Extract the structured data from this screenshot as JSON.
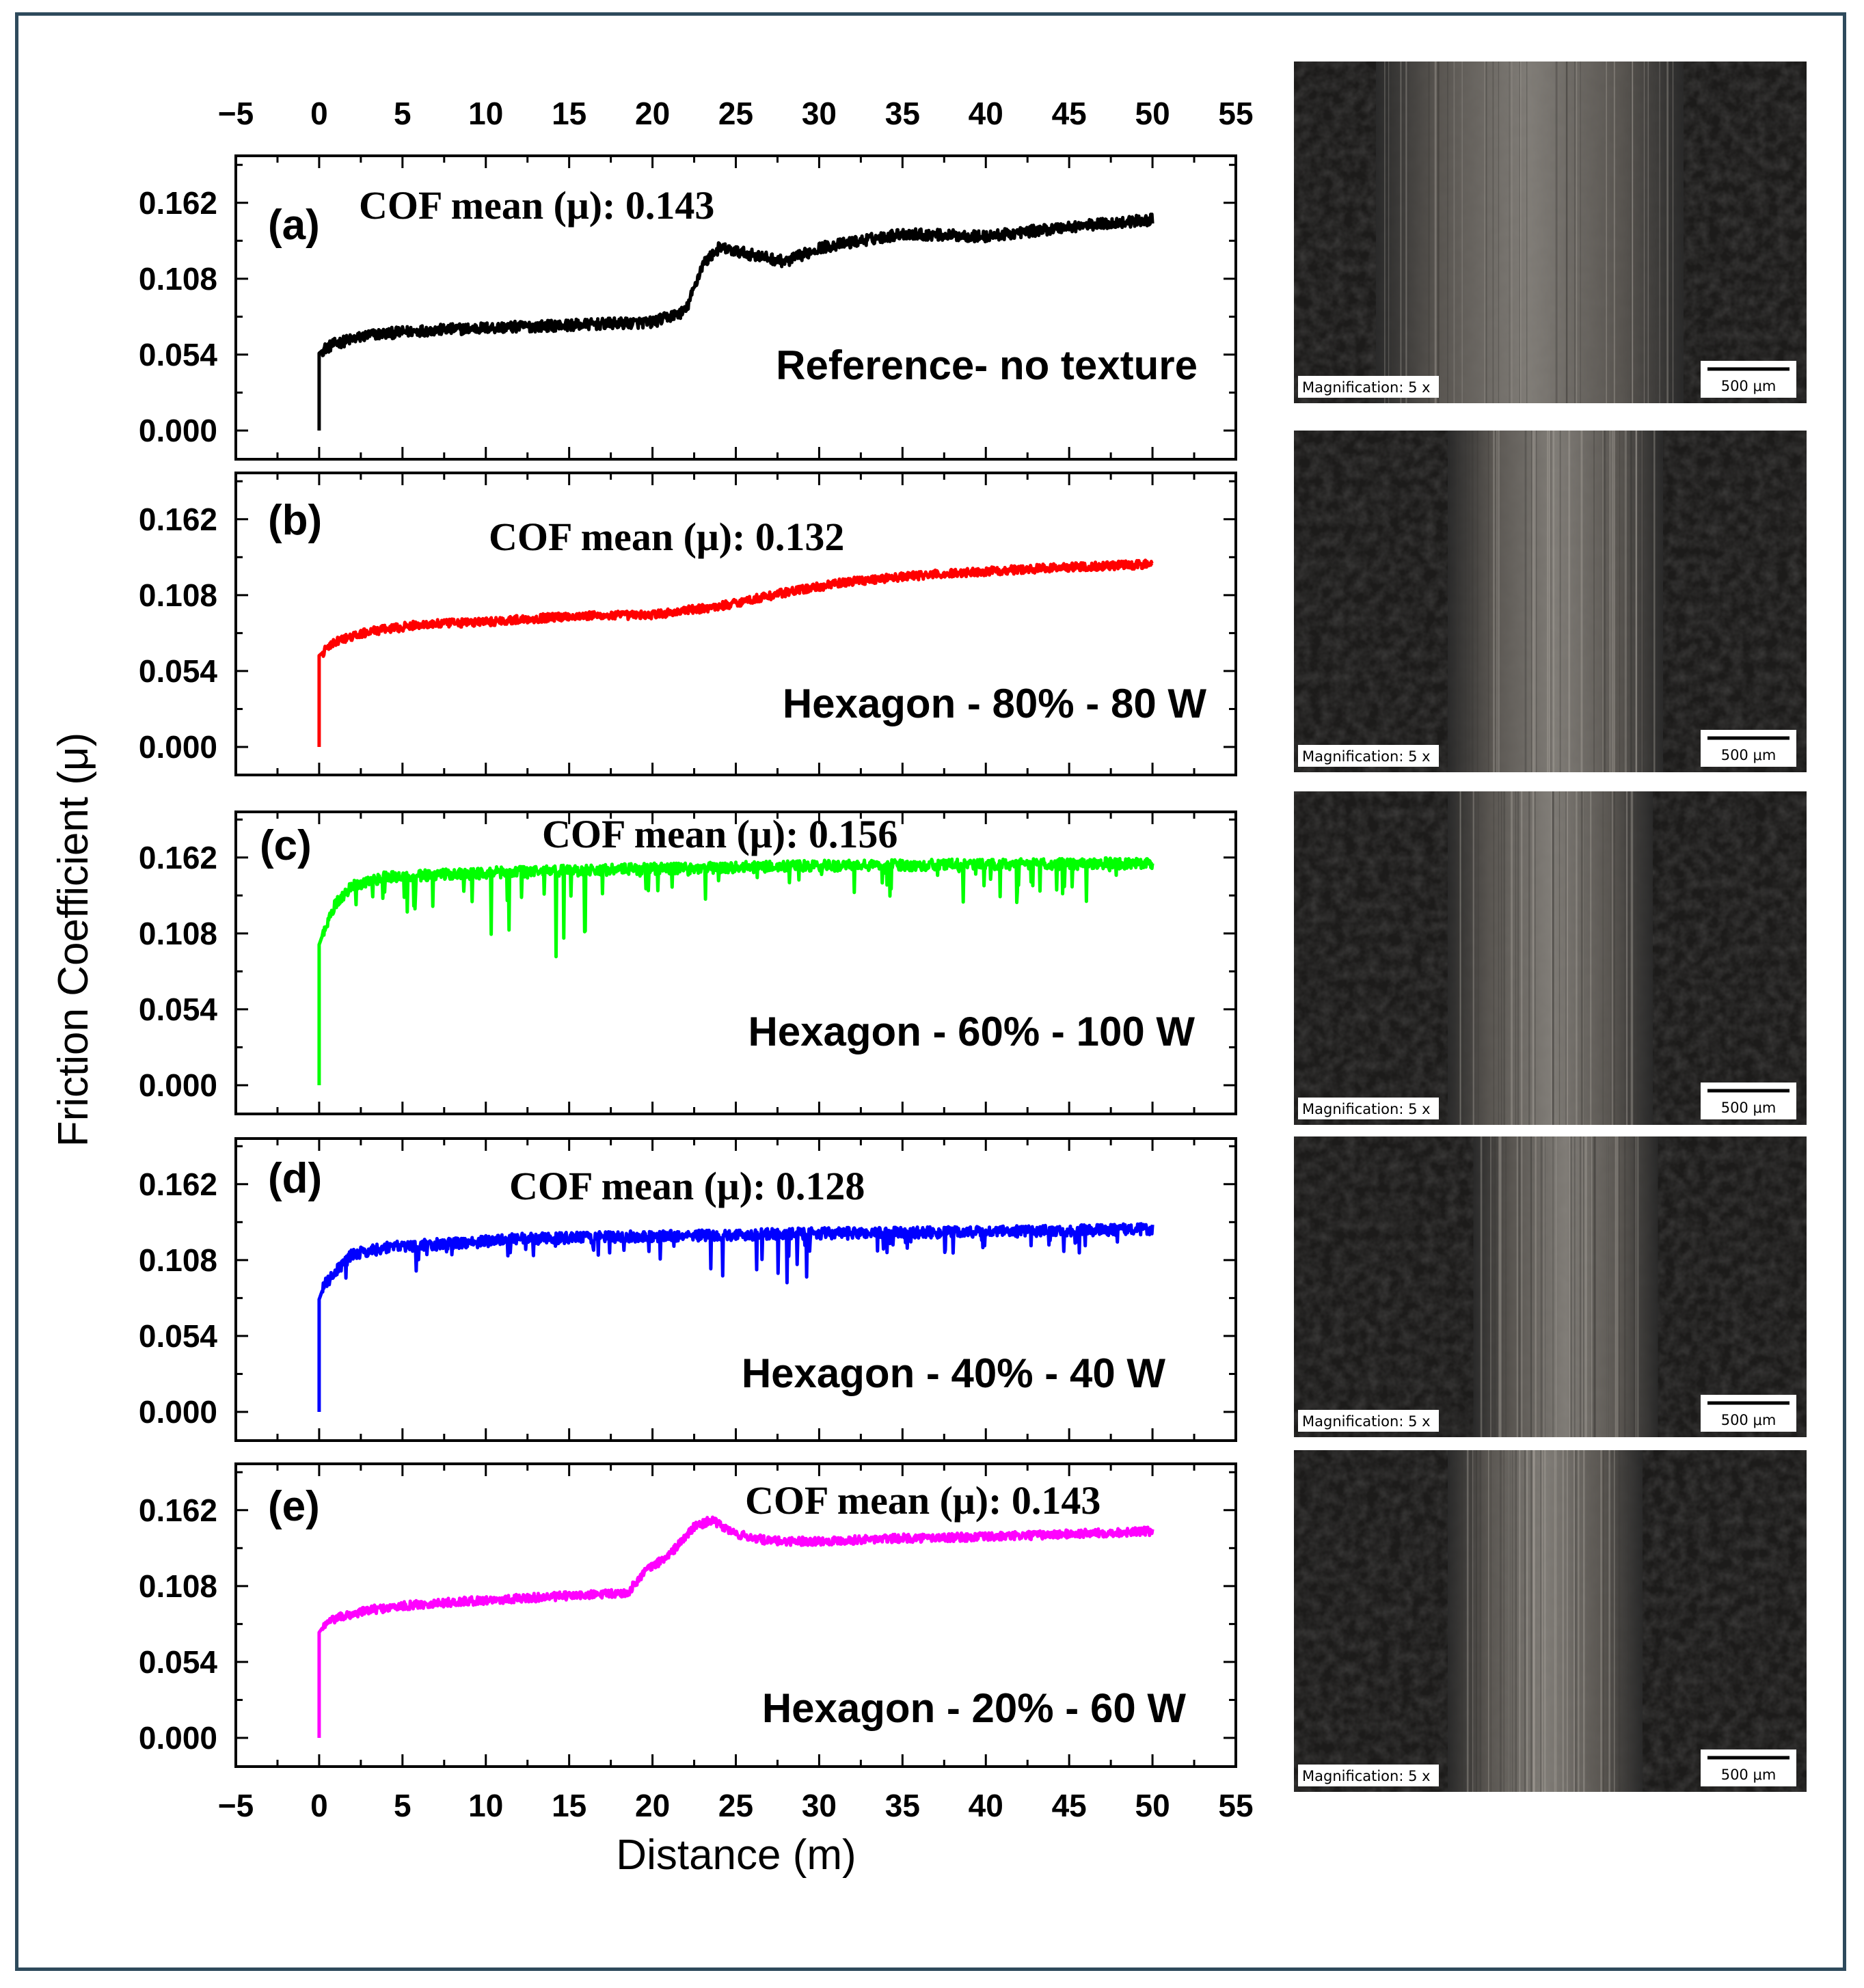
{
  "chart_data": {
    "type": "line",
    "xlabel": "Distance (m)",
    "ylabel": "Friction Coefficient (μ)",
    "xlim": [
      -5,
      55
    ],
    "ylim": [
      -0.02,
      0.195
    ],
    "x_ticks": [
      "−5",
      "0",
      "5",
      "10",
      "15",
      "20",
      "25",
      "30",
      "35",
      "40",
      "45",
      "50",
      "55"
    ],
    "y_ticks": [
      "0.000",
      "0.054",
      "0.108",
      "0.162"
    ],
    "panels": [
      {
        "tag": "(a)",
        "annotation": "COF mean (μ): 0.143",
        "condition": "Reference- no texture",
        "color": "#000000",
        "x": [
          0,
          0.3,
          1,
          3,
          6,
          10,
          15,
          20,
          22,
          23,
          24,
          26,
          28,
          30,
          35,
          40,
          45,
          50
        ],
        "y": [
          0.055,
          0.058,
          0.062,
          0.068,
          0.071,
          0.073,
          0.075,
          0.077,
          0.085,
          0.118,
          0.13,
          0.125,
          0.12,
          0.13,
          0.14,
          0.138,
          0.145,
          0.15
        ],
        "noise": 0.004,
        "image_magnification": "Magnification: 5 x",
        "image_scale": "500 μm"
      },
      {
        "tag": "(b)",
        "annotation": "COF mean (μ): 0.132",
        "condition": "Hexagon - 80% - 80 W",
        "color": "#ff0000",
        "x": [
          0,
          0.3,
          1,
          3,
          6,
          10,
          15,
          20,
          24,
          28,
          32,
          36,
          40,
          45,
          50
        ],
        "y": [
          0.065,
          0.068,
          0.075,
          0.082,
          0.087,
          0.089,
          0.093,
          0.094,
          0.1,
          0.11,
          0.118,
          0.122,
          0.125,
          0.128,
          0.13
        ],
        "noise": 0.003,
        "image_magnification": "Magnification: 5 x",
        "image_scale": "500 μm"
      },
      {
        "tag": "(c)",
        "annotation": "COF mean (μ): 0.156",
        "condition": "Hexagon - 60% - 100 W",
        "color": "#00ff00",
        "x": [
          0,
          0.3,
          1,
          2,
          4,
          8,
          12,
          20,
          30,
          40,
          50
        ],
        "y": [
          0.1,
          0.11,
          0.13,
          0.142,
          0.148,
          0.15,
          0.152,
          0.154,
          0.156,
          0.157,
          0.158
        ],
        "noise": 0.004,
        "image_magnification": "Magnification: 5 x",
        "image_scale": "500 μm"
      },
      {
        "tag": "(d)",
        "annotation": "COF mean (μ): 0.128",
        "condition": "Hexagon - 40% - 40 W",
        "color": "#0000ff",
        "x": [
          0,
          0.3,
          1,
          2,
          4,
          8,
          12,
          20,
          30,
          40,
          50
        ],
        "y": [
          0.08,
          0.09,
          0.1,
          0.112,
          0.117,
          0.12,
          0.123,
          0.125,
          0.127,
          0.128,
          0.13
        ],
        "noise": 0.004,
        "image_magnification": "Magnification: 5 x",
        "image_scale": "500 μm"
      },
      {
        "tag": "(e)",
        "annotation": "COF mean (μ): 0.143",
        "condition": "Hexagon - 20% - 60 W",
        "color": "#ff00ff",
        "x": [
          0,
          0.3,
          1,
          3,
          6,
          10,
          15,
          18.5,
          19.5,
          21,
          22.5,
          23.5,
          25,
          27,
          30,
          35,
          40,
          45,
          50
        ],
        "y": [
          0.075,
          0.08,
          0.085,
          0.091,
          0.095,
          0.098,
          0.101,
          0.103,
          0.118,
          0.13,
          0.15,
          0.155,
          0.145,
          0.14,
          0.14,
          0.142,
          0.143,
          0.145,
          0.147
        ],
        "noise": 0.003,
        "image_magnification": "Magnification: 5 x",
        "image_scale": "500 μm"
      }
    ]
  }
}
